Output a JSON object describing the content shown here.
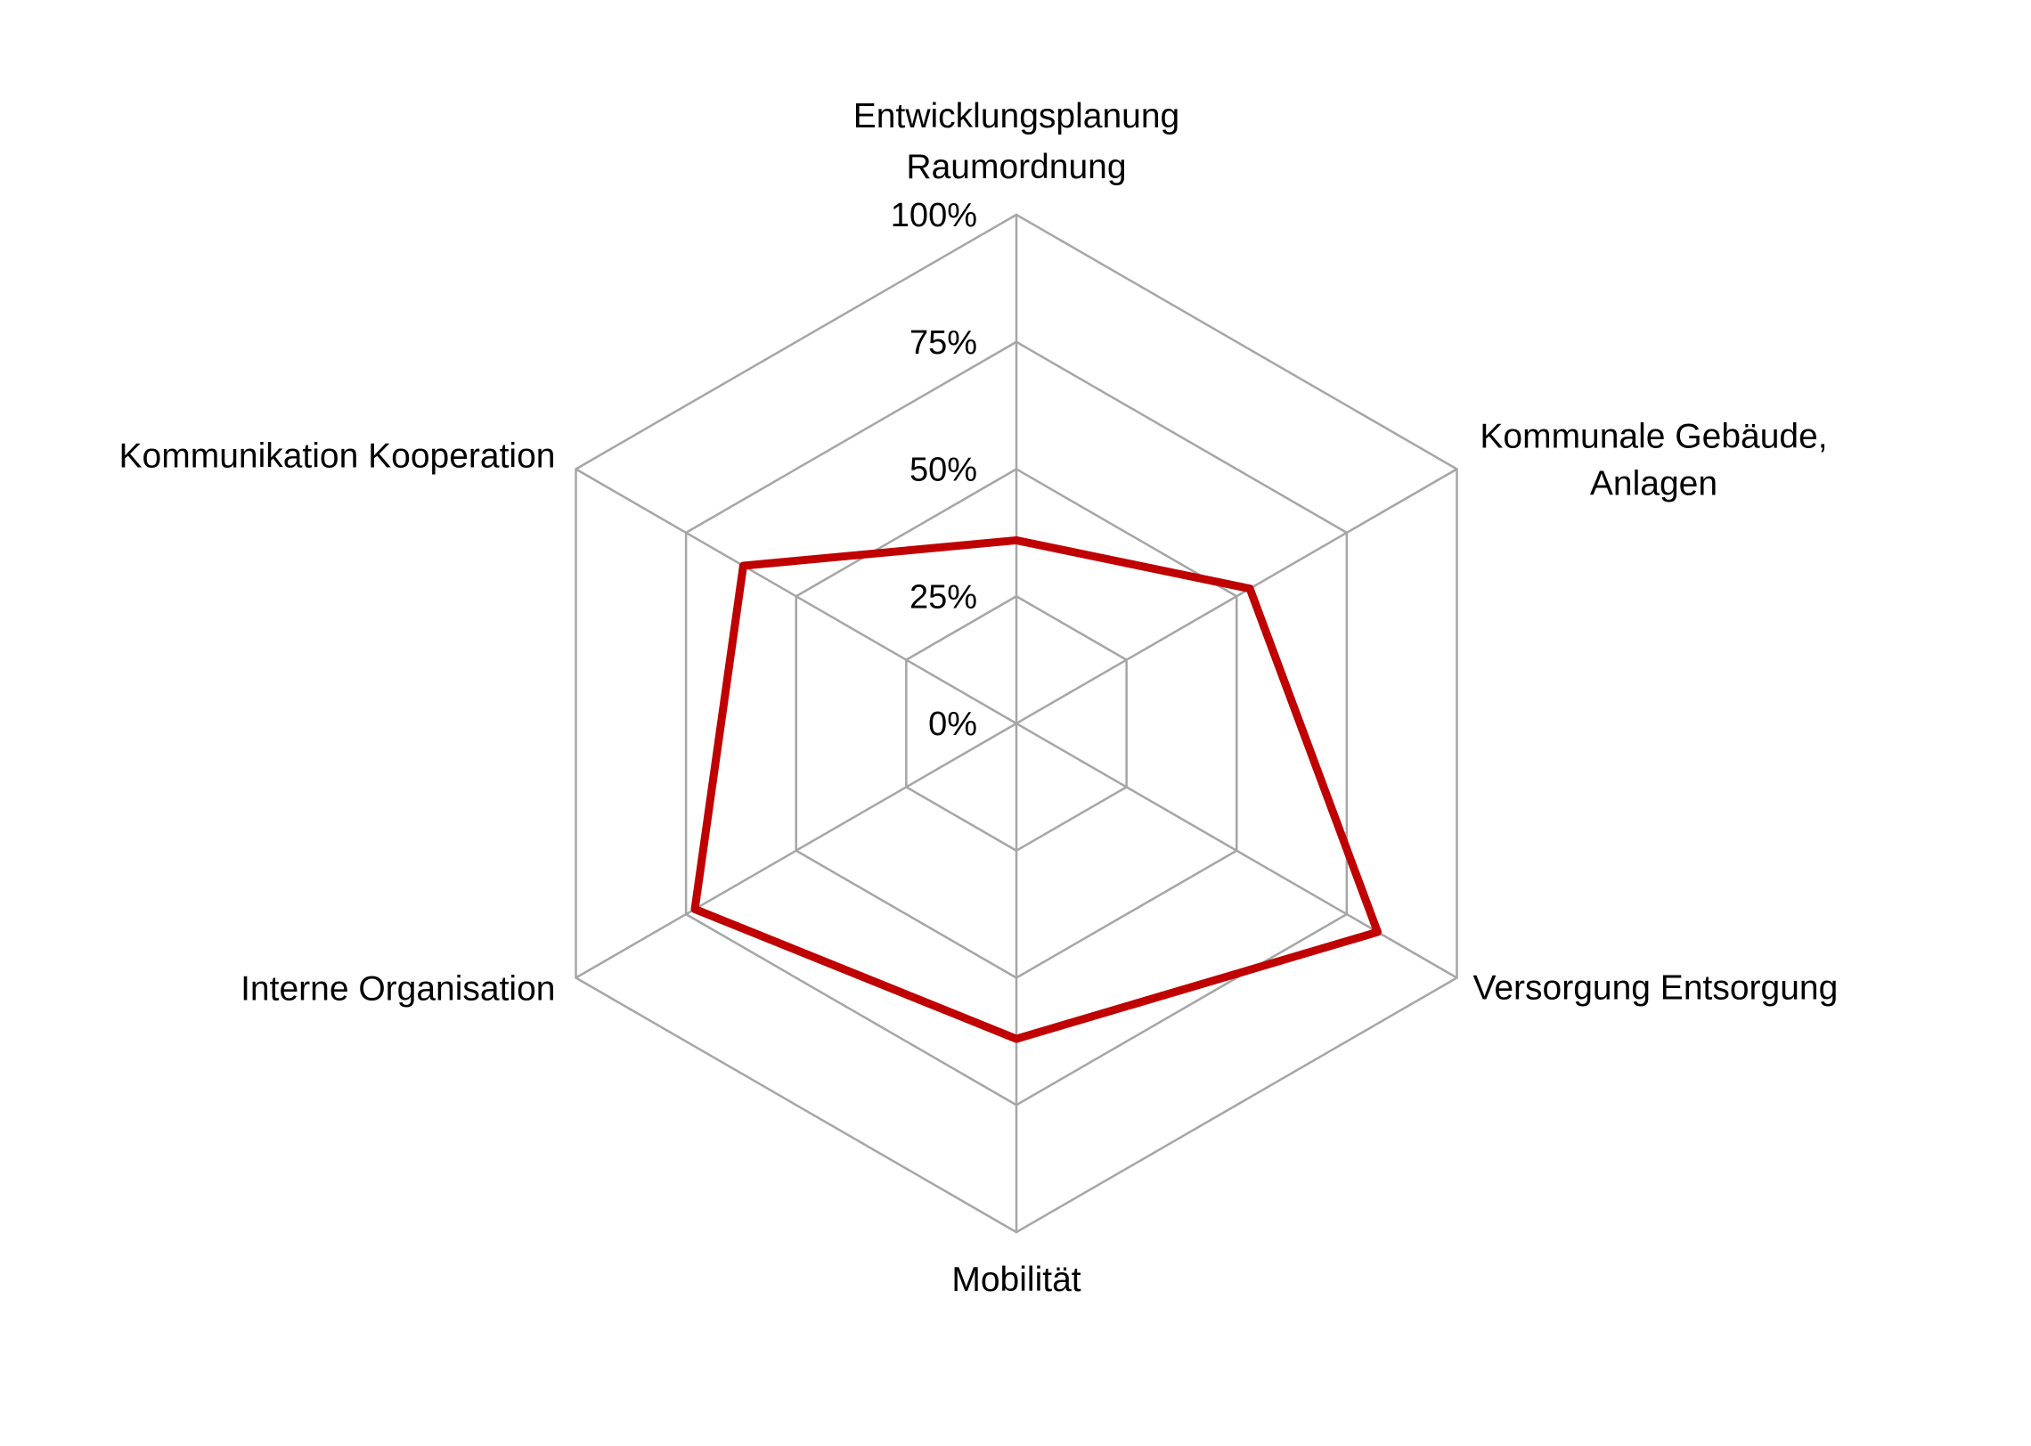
{
  "chart_data": {
    "type": "radar",
    "title": "",
    "categories": [
      "Entwicklungsplanung\nRaumordnung",
      "Kommunale Gebäude,\nAnlagen",
      "Versorgung Entsorgung",
      "Mobilität",
      "Interne Organisation",
      "Kommunikation Kooperation"
    ],
    "series": [
      {
        "values": [
          36,
          53,
          82,
          62,
          73,
          62
        ],
        "color": "#c00000"
      }
    ],
    "axis": {
      "min": 0,
      "max": 100,
      "ticks": [
        0,
        25,
        50,
        75,
        100
      ],
      "tick_labels": [
        "0%",
        "25%",
        "50%",
        "75%",
        "100%"
      ]
    },
    "grid": {
      "shape": "polygon",
      "rings": [
        25,
        50,
        75,
        100
      ],
      "spokes": 6,
      "color": "#a6a6a6"
    },
    "legend": {
      "visible": false
    },
    "colors": {
      "background": "#ffffff",
      "series": "#c00000",
      "grid": "#a6a6a6",
      "text": "#000000"
    }
  }
}
